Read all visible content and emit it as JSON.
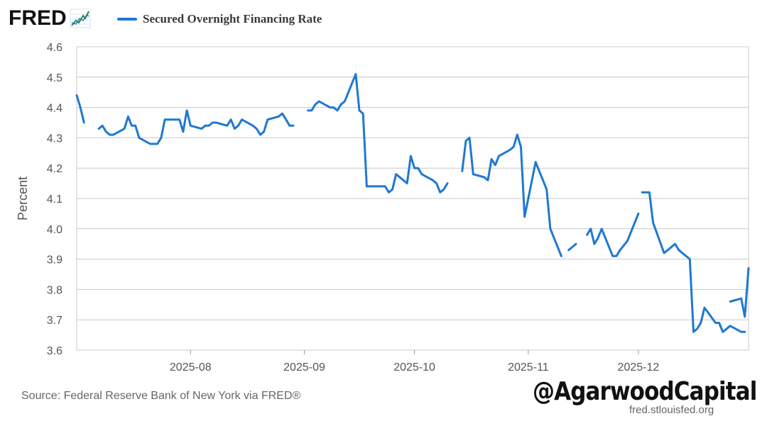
{
  "header": {
    "logo_text": "FRED",
    "logo_icon": "trend-line-icon"
  },
  "chart_data": {
    "type": "line",
    "legend_position": "top-left",
    "ylabel": "Percent",
    "xlabel": "",
    "ylim": [
      3.6,
      4.6
    ],
    "xlim": [
      "2025-07-01",
      "2025-12-31"
    ],
    "grid": true,
    "y_ticks": [
      "3.6",
      "3.7",
      "3.8",
      "3.9",
      "4.0",
      "4.1",
      "4.2",
      "4.3",
      "4.4",
      "4.5",
      "4.6"
    ],
    "x_ticks": [
      {
        "label": "2025-08",
        "date": "2025-08-01"
      },
      {
        "label": "2025-09",
        "date": "2025-09-01"
      },
      {
        "label": "2025-10",
        "date": "2025-10-01"
      },
      {
        "label": "2025-11",
        "date": "2025-11-01"
      },
      {
        "label": "2025-12",
        "date": "2025-12-01"
      }
    ],
    "series": [
      {
        "name": "Secured Overnight Financing Rate",
        "color": "#1f78d1",
        "segments": [
          [
            [
              "2025-07-01",
              4.44
            ],
            [
              "2025-07-02",
              4.4
            ],
            [
              "2025-07-03",
              4.35
            ]
          ],
          [
            [
              "2025-07-07",
              4.33
            ],
            [
              "2025-07-08",
              4.34
            ],
            [
              "2025-07-09",
              4.32
            ],
            [
              "2025-07-10",
              4.31
            ],
            [
              "2025-07-11",
              4.31
            ],
            [
              "2025-07-14",
              4.33
            ],
            [
              "2025-07-15",
              4.37
            ],
            [
              "2025-07-16",
              4.34
            ],
            [
              "2025-07-17",
              4.34
            ],
            [
              "2025-07-18",
              4.3
            ],
            [
              "2025-07-21",
              4.28
            ],
            [
              "2025-07-22",
              4.28
            ],
            [
              "2025-07-23",
              4.28
            ],
            [
              "2025-07-24",
              4.3
            ],
            [
              "2025-07-25",
              4.36
            ],
            [
              "2025-07-28",
              4.36
            ],
            [
              "2025-07-29",
              4.36
            ],
            [
              "2025-07-30",
              4.32
            ],
            [
              "2025-07-31",
              4.39
            ],
            [
              "2025-08-01",
              4.34
            ],
            [
              "2025-08-04",
              4.33
            ],
            [
              "2025-08-05",
              4.34
            ],
            [
              "2025-08-06",
              4.34
            ],
            [
              "2025-08-07",
              4.35
            ],
            [
              "2025-08-08",
              4.35
            ],
            [
              "2025-08-11",
              4.34
            ],
            [
              "2025-08-12",
              4.36
            ],
            [
              "2025-08-13",
              4.33
            ],
            [
              "2025-08-14",
              4.34
            ],
            [
              "2025-08-15",
              4.36
            ],
            [
              "2025-08-18",
              4.34
            ],
            [
              "2025-08-19",
              4.33
            ],
            [
              "2025-08-20",
              4.31
            ],
            [
              "2025-08-21",
              4.32
            ],
            [
              "2025-08-22",
              4.36
            ],
            [
              "2025-08-25",
              4.37
            ],
            [
              "2025-08-26",
              4.38
            ],
            [
              "2025-08-27",
              4.36
            ],
            [
              "2025-08-28",
              4.34
            ],
            [
              "2025-08-29",
              4.34
            ]
          ],
          [
            [
              "2025-09-02",
              4.39
            ],
            [
              "2025-09-03",
              4.39
            ],
            [
              "2025-09-04",
              4.41
            ],
            [
              "2025-09-05",
              4.42
            ],
            [
              "2025-09-08",
              4.4
            ],
            [
              "2025-09-09",
              4.4
            ],
            [
              "2025-09-10",
              4.39
            ],
            [
              "2025-09-11",
              4.41
            ],
            [
              "2025-09-12",
              4.42
            ],
            [
              "2025-09-15",
              4.51
            ],
            [
              "2025-09-16",
              4.39
            ],
            [
              "2025-09-17",
              4.38
            ],
            [
              "2025-09-18",
              4.14
            ],
            [
              "2025-09-19",
              4.14
            ],
            [
              "2025-09-22",
              4.14
            ],
            [
              "2025-09-23",
              4.14
            ],
            [
              "2025-09-24",
              4.12
            ],
            [
              "2025-09-25",
              4.13
            ],
            [
              "2025-09-26",
              4.18
            ],
            [
              "2025-09-29",
              4.15
            ],
            [
              "2025-09-30",
              4.24
            ],
            [
              "2025-10-01",
              4.2
            ],
            [
              "2025-10-02",
              4.2
            ],
            [
              "2025-10-03",
              4.18
            ],
            [
              "2025-10-06",
              4.16
            ],
            [
              "2025-10-07",
              4.15
            ],
            [
              "2025-10-08",
              4.12
            ],
            [
              "2025-10-09",
              4.13
            ],
            [
              "2025-10-10",
              4.15
            ]
          ],
          [
            [
              "2025-10-14",
              4.19
            ],
            [
              "2025-10-15",
              4.29
            ],
            [
              "2025-10-16",
              4.3
            ],
            [
              "2025-10-17",
              4.18
            ],
            [
              "2025-10-20",
              4.17
            ],
            [
              "2025-10-21",
              4.16
            ],
            [
              "2025-10-22",
              4.23
            ],
            [
              "2025-10-23",
              4.21
            ],
            [
              "2025-10-24",
              4.24
            ],
            [
              "2025-10-27",
              4.26
            ],
            [
              "2025-10-28",
              4.27
            ],
            [
              "2025-10-29",
              4.31
            ],
            [
              "2025-10-30",
              4.27
            ],
            [
              "2025-10-31",
              4.04
            ],
            [
              "2025-11-03",
              4.22
            ],
            [
              "2025-11-04",
              4.19
            ],
            [
              "2025-11-05",
              4.16
            ],
            [
              "2025-11-06",
              4.13
            ],
            [
              "2025-11-07",
              4.0
            ],
            [
              "2025-11-10",
              3.91
            ]
          ],
          [
            [
              "2025-11-12",
              3.93
            ],
            [
              "2025-11-13",
              3.94
            ],
            [
              "2025-11-14",
              3.95
            ]
          ],
          [
            [
              "2025-11-17",
              3.98
            ],
            [
              "2025-11-18",
              4.0
            ],
            [
              "2025-11-19",
              3.95
            ],
            [
              "2025-11-20",
              3.97
            ],
            [
              "2025-11-21",
              4.0
            ],
            [
              "2025-11-24",
              3.91
            ],
            [
              "2025-11-25",
              3.91
            ],
            [
              "2025-11-26",
              3.93
            ],
            [
              "2025-11-28",
              3.96
            ],
            [
              "2025-12-01",
              4.05
            ]
          ],
          [
            [
              "2025-12-02",
              4.12
            ],
            [
              "2025-12-03",
              4.12
            ],
            [
              "2025-12-04",
              4.12
            ],
            [
              "2025-12-05",
              4.02
            ],
            [
              "2025-12-08",
              3.92
            ],
            [
              "2025-12-09",
              3.93
            ],
            [
              "2025-12-10",
              3.94
            ],
            [
              "2025-12-11",
              3.95
            ],
            [
              "2025-12-12",
              3.93
            ],
            [
              "2025-12-15",
              3.9
            ],
            [
              "2025-12-16",
              3.66
            ],
            [
              "2025-12-17",
              3.67
            ],
            [
              "2025-12-18",
              3.69
            ],
            [
              "2025-12-19",
              3.74
            ],
            [
              "2025-12-22",
              3.69
            ],
            [
              "2025-12-23",
              3.69
            ],
            [
              "2025-12-24",
              3.66
            ],
            [
              "2025-12-26",
              3.68
            ],
            [
              "2025-12-29",
              3.66
            ],
            [
              "2025-12-30",
              3.66
            ]
          ],
          [
            [
              "2025-12-26",
              3.76
            ],
            [
              "2025-12-29",
              3.77
            ],
            [
              "2025-12-30",
              3.71
            ],
            [
              "2025-12-31",
              3.87
            ]
          ]
        ]
      }
    ]
  },
  "footer": {
    "source": "Source: Federal Reserve Bank of New York via FRED®",
    "url": "fred.stlouisfed.org",
    "watermark": "@AgarwoodCapital"
  }
}
